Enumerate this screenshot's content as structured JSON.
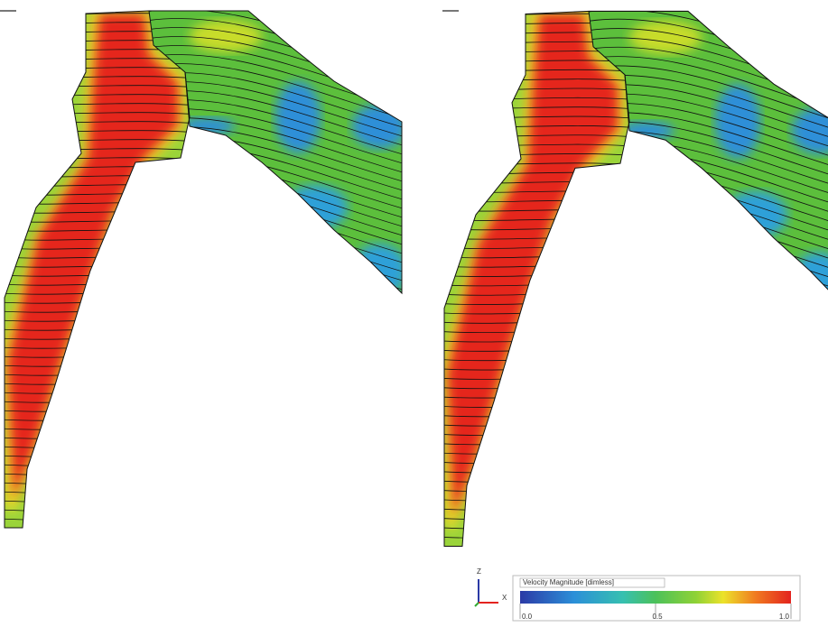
{
  "triad": {
    "up": "Z",
    "right": "X"
  },
  "legend": {
    "title": "Velocity Magnitude [dimless]",
    "ticks": [
      {
        "value": 0,
        "label": "0.0"
      },
      {
        "value": 0.5,
        "label": "0.5"
      },
      {
        "value": 1,
        "label": "1.0"
      }
    ]
  }
}
